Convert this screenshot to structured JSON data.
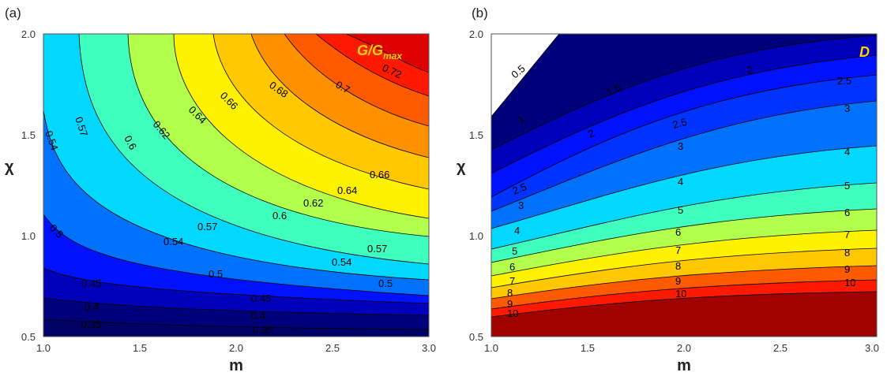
{
  "chart_data": [
    {
      "type": "contour",
      "panel_label": "(a)",
      "quantity_label": "G/G",
      "quantity_subscript": "max",
      "xlabel": "m",
      "ylabel": "χ",
      "xlim": [
        1.0,
        3.0
      ],
      "ylim": [
        0.5,
        2.0
      ],
      "xticks": [
        "1.0",
        "1.5",
        "2.0",
        "2.5",
        "3.0"
      ],
      "yticks": [
        "0.5",
        "1.0",
        "1.5",
        "2.0"
      ],
      "levels": [
        0.35,
        0.4,
        0.45,
        0.5,
        0.54,
        0.57,
        0.6,
        0.62,
        0.64,
        0.66,
        0.68,
        0.7,
        0.72
      ],
      "level_labels": [
        "0.35",
        "0.4",
        "0.45",
        "0.5",
        "0.54",
        "0.57",
        "0.6",
        "0.62",
        "0.64",
        "0.66",
        "0.68",
        "0.7",
        "0.72"
      ],
      "band_colors": [
        "#00007a",
        "#0000bb",
        "#0011ff",
        "#0072ff",
        "#00d8ff",
        "#3fffbe",
        "#b2ff4c",
        "#fff200",
        "#ffc800",
        "#ff9100",
        "#ff5a00",
        "#ff1900",
        "#dc0000",
        "#a00000"
      ],
      "sample_contours": [
        {
          "level": "0.35",
          "points": [
            [
              1.0,
              0.58
            ],
            [
              1.5,
              0.56
            ],
            [
              2.0,
              0.55
            ],
            [
              2.5,
              0.545
            ],
            [
              3.0,
              0.54
            ]
          ]
        },
        {
          "level": "0.5",
          "points": [
            [
              1.0,
              1.1
            ],
            [
              1.25,
              0.92
            ],
            [
              1.5,
              0.86
            ],
            [
              2.0,
              0.81
            ],
            [
              2.5,
              0.79
            ],
            [
              3.0,
              0.78
            ]
          ]
        },
        {
          "level": "0.6",
          "points": [
            [
              1.5,
              2.0
            ],
            [
              1.6,
              1.5
            ],
            [
              1.8,
              1.3
            ],
            [
              2.0,
              1.22
            ],
            [
              2.5,
              1.09
            ],
            [
              3.0,
              1.05
            ]
          ]
        },
        {
          "level": "0.72",
          "points": [
            [
              2.7,
              2.0
            ],
            [
              2.8,
              1.9
            ],
            [
              3.0,
              1.85
            ]
          ]
        }
      ]
    },
    {
      "type": "contour",
      "panel_label": "(b)",
      "quantity_label": "D",
      "xlabel": "m",
      "ylabel": "χ",
      "xlim": [
        1.0,
        3.0
      ],
      "ylim": [
        0.5,
        2.0
      ],
      "xticks": [
        "1.0",
        "1.5",
        "2.0",
        "2.5",
        "3.0"
      ],
      "yticks": [
        "0.5",
        "1.0",
        "1.5",
        "2.0"
      ],
      "levels": [
        0.5,
        1,
        1.5,
        2,
        2.5,
        3,
        4,
        5,
        6,
        7,
        8,
        9,
        10
      ],
      "level_labels": [
        "0.5",
        "1",
        "1.5",
        "2",
        "2.5",
        "3",
        "4",
        "5",
        "6",
        "7",
        "8",
        "9",
        "10"
      ],
      "band_colors": [
        "#00007a",
        "#0000bb",
        "#0011ff",
        "#0072ff",
        "#00d8ff",
        "#3fffbe",
        "#b2ff4c",
        "#fff200",
        "#ffc800",
        "#ff9100",
        "#ff5a00",
        "#ff1900",
        "#dc0000",
        "#a00000"
      ],
      "sample_contours": [
        {
          "level": "1",
          "points": [
            [
              1.0,
              1.42
            ],
            [
              1.3,
              1.76
            ],
            [
              1.6,
              1.98
            ]
          ]
        },
        {
          "level": "4",
          "points": [
            [
              1.0,
              1.03
            ],
            [
              1.5,
              1.14
            ],
            [
              2.0,
              1.24
            ],
            [
              2.5,
              1.31
            ],
            [
              3.0,
              1.37
            ]
          ]
        },
        {
          "level": "10",
          "points": [
            [
              1.0,
              0.62
            ],
            [
              1.5,
              0.68
            ],
            [
              2.0,
              0.72
            ],
            [
              2.5,
              0.75
            ],
            [
              3.0,
              0.77
            ]
          ]
        }
      ]
    }
  ]
}
